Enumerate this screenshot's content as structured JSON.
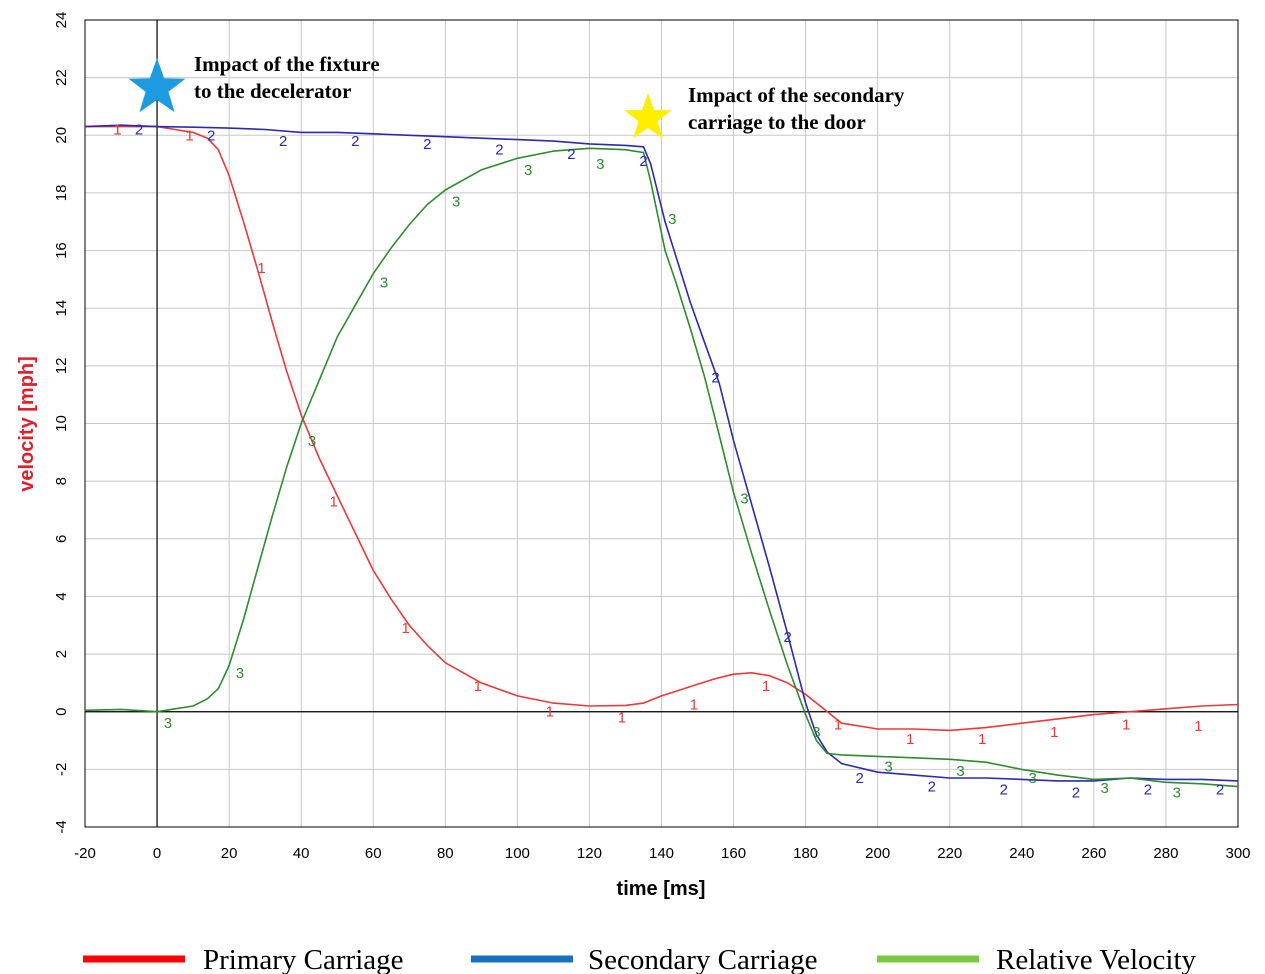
{
  "chart_data": {
    "type": "line",
    "xlabel": "time [ms]",
    "ylabel": "velocity [mph]",
    "xlim": [
      -20,
      300
    ],
    "ylim": [
      -4,
      24
    ],
    "xticks": [
      -20,
      0,
      20,
      40,
      60,
      80,
      100,
      120,
      140,
      160,
      180,
      200,
      220,
      240,
      260,
      280,
      300
    ],
    "yticks": [
      -4,
      -2,
      0,
      2,
      4,
      6,
      8,
      10,
      12,
      14,
      16,
      18,
      20,
      22,
      24
    ],
    "grid": true,
    "legend_position": "bottom",
    "series": [
      {
        "name": "Primary Carriage",
        "marker": "1",
        "color": "#e83a3a",
        "legend_color": "#ff0000",
        "x": [
          -20,
          -10,
          0,
          5,
          10,
          14,
          17,
          20,
          24,
          28,
          32,
          36,
          40,
          45,
          50,
          55,
          60,
          65,
          70,
          75,
          80,
          90,
          100,
          110,
          120,
          130,
          135,
          140,
          145,
          150,
          155,
          160,
          165,
          170,
          175,
          180,
          185,
          190,
          200,
          210,
          220,
          230,
          240,
          250,
          260,
          270,
          280,
          290,
          300
        ],
        "y": [
          20.3,
          20.3,
          20.3,
          20.2,
          20.1,
          19.9,
          19.5,
          18.6,
          17.0,
          15.3,
          13.5,
          11.8,
          10.3,
          8.8,
          7.5,
          6.2,
          4.9,
          3.9,
          3.0,
          2.3,
          1.7,
          1.0,
          0.55,
          0.3,
          0.2,
          0.22,
          0.3,
          0.55,
          0.75,
          0.95,
          1.15,
          1.3,
          1.35,
          1.25,
          1.0,
          0.6,
          0.1,
          -0.4,
          -0.6,
          -0.6,
          -0.65,
          -0.55,
          -0.4,
          -0.25,
          -0.1,
          0.0,
          0.1,
          0.2,
          0.25
        ],
        "marker_x": [
          -11,
          9,
          29,
          49,
          69,
          89,
          109,
          129,
          149,
          169,
          189,
          209,
          229,
          249,
          269,
          289
        ],
        "marker_y": [
          20.2,
          20.0,
          15.4,
          7.3,
          2.9,
          0.9,
          0.0,
          -0.2,
          0.25,
          0.9,
          -0.45,
          -0.95,
          -0.95,
          -0.7,
          -0.45,
          -0.5
        ]
      },
      {
        "name": "Secondary Carriage",
        "marker": "2",
        "color": "#2a2ab0",
        "legend_color": "#1a6fbf",
        "x": [
          -20,
          -10,
          0,
          10,
          20,
          30,
          40,
          50,
          60,
          70,
          80,
          90,
          100,
          110,
          120,
          130,
          135,
          137,
          139,
          141,
          144,
          148,
          152,
          156,
          160,
          165,
          170,
          175,
          180,
          183,
          186,
          190,
          200,
          210,
          220,
          230,
          240,
          250,
          260,
          270,
          280,
          290,
          300
        ],
        "y": [
          20.3,
          20.35,
          20.3,
          20.28,
          20.25,
          20.2,
          20.1,
          20.1,
          20.05,
          20.0,
          19.95,
          19.9,
          19.85,
          19.8,
          19.7,
          19.65,
          19.6,
          19.0,
          18.0,
          17.0,
          15.8,
          14.2,
          12.8,
          11.4,
          9.4,
          7.2,
          5.0,
          2.7,
          0.3,
          -0.8,
          -1.4,
          -1.8,
          -2.1,
          -2.2,
          -2.3,
          -2.3,
          -2.35,
          -2.4,
          -2.4,
          -2.3,
          -2.35,
          -2.35,
          -2.4
        ],
        "marker_x": [
          -5,
          15,
          35,
          55,
          75,
          95,
          115,
          135,
          155,
          175,
          195,
          215,
          235,
          255,
          275,
          295
        ],
        "marker_y": [
          20.2,
          20.0,
          19.8,
          19.8,
          19.7,
          19.5,
          19.35,
          19.1,
          11.6,
          2.6,
          -2.3,
          -2.6,
          -2.7,
          -2.8,
          -2.7,
          -2.7
        ]
      },
      {
        "name": "Relative Velocity",
        "marker": "3",
        "color": "#2e8b2e",
        "legend_color": "#7ac943",
        "x": [
          -20,
          -10,
          0,
          5,
          10,
          14,
          17,
          20,
          24,
          28,
          32,
          36,
          40,
          45,
          50,
          55,
          60,
          65,
          70,
          75,
          80,
          90,
          100,
          110,
          120,
          130,
          135,
          137,
          139,
          141,
          144,
          148,
          152,
          156,
          160,
          165,
          170,
          175,
          180,
          183,
          186,
          190,
          200,
          210,
          220,
          230,
          240,
          250,
          260,
          270,
          280,
          290,
          300
        ],
        "y": [
          0.05,
          0.08,
          0.0,
          0.1,
          0.2,
          0.45,
          0.8,
          1.6,
          3.2,
          5.0,
          6.8,
          8.5,
          10.0,
          11.5,
          13.0,
          14.1,
          15.2,
          16.1,
          16.9,
          17.6,
          18.1,
          18.8,
          19.2,
          19.45,
          19.55,
          19.5,
          19.4,
          18.4,
          17.2,
          16.0,
          14.9,
          13.3,
          11.6,
          9.6,
          7.6,
          5.5,
          3.5,
          1.6,
          -0.1,
          -1.0,
          -1.45,
          -1.5,
          -1.55,
          -1.6,
          -1.65,
          -1.75,
          -2.0,
          -2.2,
          -2.35,
          -2.3,
          -2.45,
          -2.5,
          -2.6
        ],
        "marker_x": [
          3,
          23,
          43,
          63,
          83,
          103,
          123,
          143,
          163,
          183,
          203,
          223,
          243,
          263,
          283
        ],
        "marker_y": [
          -0.4,
          1.35,
          9.4,
          14.9,
          17.7,
          18.8,
          19.0,
          17.1,
          7.4,
          -0.7,
          -1.9,
          -2.05,
          -2.3,
          -2.65,
          -2.8
        ]
      }
    ],
    "annotations": [
      {
        "line1": "Impact of the fixture",
        "line2": "to the decelerator",
        "star_color": "#1e9ae0"
      },
      {
        "line1": "Impact of the secondary",
        "line2": "carriage to the door",
        "star_color": "#ffee00"
      }
    ]
  }
}
